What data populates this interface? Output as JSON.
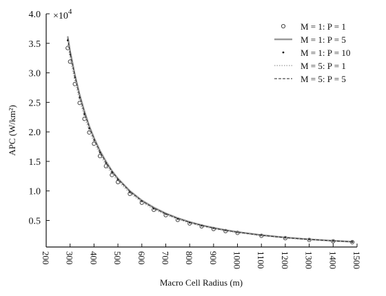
{
  "chart_data": {
    "type": "line",
    "title": "",
    "xlabel": "Macro Cell Radius (m)",
    "ylabel": "APC (W/km²)",
    "y_multiplier": "×10",
    "y_multiplier_exp": "4",
    "xlim": [
      200,
      1500
    ],
    "ylim": [
      0.05,
      4.0
    ],
    "x_ticks": [
      "200",
      "300",
      "400",
      "500",
      "600",
      "700",
      "800",
      "900",
      "1000",
      "1100",
      "1200",
      "1300",
      "1400",
      "1500"
    ],
    "y_ticks": [
      "0.5",
      "1.0",
      "1.5",
      "2.0",
      "2.5",
      "3.0",
      "3.5",
      "4.0"
    ],
    "grid": false,
    "legend_position": "top-right",
    "x": [
      290,
      300,
      320,
      340,
      360,
      380,
      400,
      425,
      450,
      475,
      500,
      550,
      600,
      650,
      700,
      750,
      800,
      850,
      900,
      950,
      1000,
      1100,
      1200,
      1300,
      1400,
      1480
    ],
    "series": [
      {
        "name": "M = 1: P = 1",
        "style": "circle-markers",
        "color": "#444444",
        "values": [
          3.42,
          3.19,
          2.81,
          2.49,
          2.22,
          1.99,
          1.8,
          1.59,
          1.42,
          1.27,
          1.15,
          0.95,
          0.8,
          0.68,
          0.59,
          0.51,
          0.45,
          0.4,
          0.355,
          0.32,
          0.29,
          0.24,
          0.2,
          0.17,
          0.147,
          0.132
        ]
      },
      {
        "name": "M = 1: P = 5",
        "style": "solid-gray",
        "color": "#999999",
        "values": [
          3.62,
          3.37,
          2.97,
          2.63,
          2.35,
          2.1,
          1.9,
          1.68,
          1.5,
          1.34,
          1.21,
          1.0,
          0.84,
          0.72,
          0.62,
          0.54,
          0.475,
          0.42,
          0.375,
          0.337,
          0.305,
          0.252,
          0.212,
          0.181,
          0.156,
          0.14
        ]
      },
      {
        "name": "M = 1: P = 10",
        "style": "dot-markers",
        "color": "#111111",
        "values": [
          3.55,
          3.31,
          2.92,
          2.58,
          2.3,
          2.06,
          1.86,
          1.65,
          1.47,
          1.32,
          1.19,
          0.98,
          0.825,
          0.7,
          0.605,
          0.527,
          0.463,
          0.41,
          0.366,
          0.329,
          0.297,
          0.246,
          0.207,
          0.176,
          0.152,
          0.136
        ]
      },
      {
        "name": "M = 5: P = 1",
        "style": "dotted-gray",
        "color": "#aaaaaa",
        "values": [
          3.48,
          3.25,
          2.86,
          2.53,
          2.26,
          2.02,
          1.83,
          1.62,
          1.44,
          1.29,
          1.17,
          0.965,
          0.81,
          0.69,
          0.597,
          0.52,
          0.456,
          0.404,
          0.36,
          0.324,
          0.293,
          0.242,
          0.203,
          0.173,
          0.15,
          0.134
        ]
      },
      {
        "name": "M = 5: P = 5",
        "style": "dashed-black",
        "color": "#222222",
        "values": [
          3.58,
          3.34,
          2.94,
          2.6,
          2.32,
          2.08,
          1.88,
          1.66,
          1.48,
          1.33,
          1.2,
          0.99,
          0.83,
          0.71,
          0.612,
          0.533,
          0.468,
          0.415,
          0.37,
          0.333,
          0.301,
          0.249,
          0.209,
          0.178,
          0.154,
          0.138
        ]
      }
    ]
  }
}
